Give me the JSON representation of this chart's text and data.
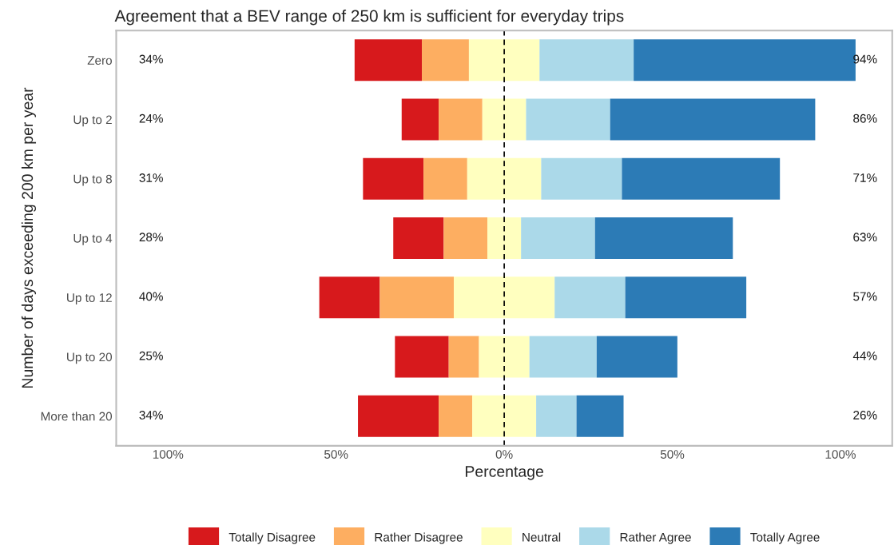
{
  "chart_data": {
    "type": "bar",
    "orientation": "horizontal",
    "title": "Agreement that a BEV range of 250 km is sufficient for everyday trips",
    "xlabel": "Percentage",
    "ylabel": "Number of days exceeding 200 km per year",
    "categories": [
      "Zero",
      "Up to 2",
      "Up to 8",
      "Up to 4",
      "Up to 12",
      "Up to 20",
      "More than 20"
    ],
    "series": [
      {
        "name": "Totally Disagree",
        "color": "#d7191c",
        "base": [
          -44.5,
          -30.5,
          -42,
          -33,
          -55,
          -32.5,
          -43.5
        ],
        "values": [
          20,
          11,
          18,
          15,
          18,
          16,
          24
        ]
      },
      {
        "name": "Rather Disagree",
        "color": "#fdae61",
        "base": [
          -24.5,
          -19.5,
          -24,
          -18,
          -37,
          -16.5,
          -19.5
        ],
        "values": [
          14,
          13,
          13,
          13,
          22,
          9,
          10
        ]
      },
      {
        "name": "Neutral",
        "color": "#ffffbf",
        "base": [
          -10.5,
          -6.5,
          -11,
          -5,
          -15,
          -7.5,
          -9.5
        ],
        "values": [
          21,
          13,
          22,
          10,
          30,
          15,
          19
        ]
      },
      {
        "name": "Rather Agree",
        "color": "#abd9e9",
        "base": [
          10.5,
          6.5,
          11,
          5,
          15,
          7.5,
          9.5
        ],
        "values": [
          28,
          25,
          24,
          22,
          21,
          20,
          12
        ]
      },
      {
        "name": "Totally Agree",
        "color": "#2c7bb6",
        "base": [
          38.5,
          31.5,
          35,
          27,
          36,
          27.5,
          21.5
        ],
        "values": [
          66,
          61,
          47,
          41,
          36,
          24,
          14
        ]
      }
    ],
    "xlim": [
      -115.4,
      115.4
    ],
    "xticks": [
      {
        "value": -100,
        "label": "100%"
      },
      {
        "value": -50,
        "label": "50%"
      },
      {
        "value": 0,
        "label": "0%"
      },
      {
        "value": 50,
        "label": "50%"
      },
      {
        "value": 100,
        "label": "100%"
      }
    ],
    "ref_lines": [
      {
        "axis": "x",
        "value": 0,
        "color": "#000000",
        "line_style": "dashed"
      }
    ],
    "legend": "bottom",
    "annotations": [
      "34%",
      "24%",
      "31%",
      "28%",
      "40%",
      "25%",
      "34%",
      "94%",
      "86%",
      "71%",
      "63%",
      "57%",
      "44%",
      "26%"
    ]
  }
}
